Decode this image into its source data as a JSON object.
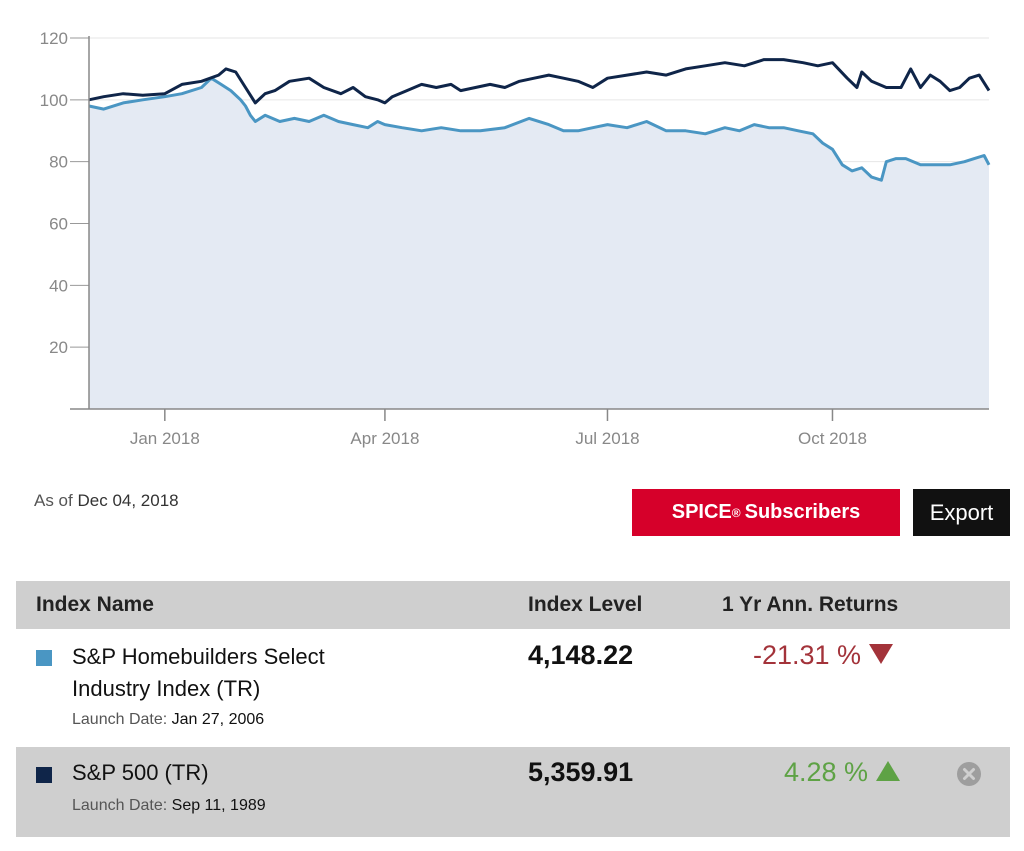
{
  "chart_data": {
    "type": "line",
    "y_ticks": [
      "120",
      "100",
      "80",
      "60",
      "40",
      "20"
    ],
    "ylim": [
      0,
      120
    ],
    "x_ticks": [
      "Jan 2018",
      "Apr 2018",
      "Jul 2018",
      "Oct 2018"
    ],
    "x_tick_days": [
      31,
      121,
      212,
      304
    ],
    "xlim_days": [
      0,
      368
    ],
    "grid": true,
    "series": [
      {
        "name": "S&P 500 (TR)",
        "color": "#0f2549",
        "fill": false,
        "x": [
          0,
          6,
          14,
          22,
          31,
          38,
          46,
          53,
          56,
          60,
          64,
          68,
          72,
          76,
          82,
          90,
          96,
          103,
          108,
          113,
          118,
          121,
          124,
          130,
          136,
          142,
          148,
          152,
          158,
          164,
          170,
          176,
          182,
          188,
          194,
          200,
          206,
          212,
          220,
          228,
          236,
          244,
          252,
          260,
          268,
          276,
          284,
          292,
          298,
          304,
          310,
          314,
          316,
          320,
          326,
          332,
          336,
          340,
          344,
          348,
          352,
          356,
          360,
          364,
          368
        ],
        "y": [
          100,
          101,
          102,
          101.5,
          102,
          105,
          106,
          108,
          110,
          109,
          104,
          99,
          102,
          103,
          106,
          107,
          104,
          102,
          104,
          101,
          100,
          99,
          101,
          103,
          105,
          104,
          105,
          103,
          104,
          105,
          104,
          106,
          107,
          108,
          107,
          106,
          104,
          107,
          108,
          109,
          108,
          110,
          111,
          112,
          111,
          113,
          113,
          112,
          111,
          112,
          107,
          104,
          109,
          106,
          104,
          104,
          110,
          104,
          108,
          106,
          103,
          104,
          107,
          108,
          103
        ]
      },
      {
        "name": "S&P Homebuilders Select Industry Index (TR)",
        "color": "#4a96c3",
        "fill": true,
        "fill_color": "#e4eaf3",
        "x": [
          0,
          6,
          14,
          22,
          31,
          38,
          46,
          50,
          54,
          58,
          62,
          64,
          66,
          68,
          72,
          78,
          84,
          90,
          96,
          102,
          108,
          114,
          118,
          121,
          128,
          136,
          144,
          152,
          160,
          170,
          180,
          188,
          194,
          200,
          206,
          212,
          220,
          228,
          236,
          244,
          252,
          260,
          266,
          272,
          278,
          284,
          290,
          296,
          300,
          304,
          308,
          312,
          316,
          320,
          324,
          326,
          330,
          334,
          340,
          346,
          352,
          358,
          362,
          366,
          368
        ],
        "y": [
          98,
          97,
          99,
          100,
          101,
          102,
          104,
          107,
          105,
          103,
          100,
          98,
          95,
          93,
          95,
          93,
          94,
          93,
          95,
          93,
          92,
          91,
          93,
          92,
          91,
          90,
          91,
          90,
          90,
          91,
          94,
          92,
          90,
          90,
          91,
          92,
          91,
          93,
          90,
          90,
          89,
          91,
          90,
          92,
          91,
          91,
          90,
          89,
          86,
          84,
          79,
          77,
          78,
          75,
          74,
          80,
          81,
          81,
          79,
          79,
          79,
          80,
          81,
          82,
          79
        ]
      }
    ]
  },
  "as_of": {
    "label": "As of",
    "date": "Dec 04, 2018"
  },
  "buttons": {
    "spice_label": "SPICE",
    "spice_sup": "®",
    "spice_suffix": "Subscribers",
    "export_label": "Export"
  },
  "table": {
    "headers": {
      "name": "Index Name",
      "level": "Index Level",
      "returns": "1 Yr Ann. Returns"
    },
    "rows": [
      {
        "name_line1": "S&P Homebuilders Select",
        "name_line2": "Industry Index (TR)",
        "launch_label": "Launch Date:",
        "launch_date": "Jan 27, 2006",
        "level": "4,148.22",
        "returns": "-21.31 %",
        "swatch_color": "#4a96c3"
      },
      {
        "name_line1": "S&P 500 (TR)",
        "launch_label": "Launch Date:",
        "launch_date": "Sep 11, 1989",
        "level": "5,359.91",
        "returns": "4.28 %",
        "swatch_color": "#0f2549"
      }
    ]
  }
}
